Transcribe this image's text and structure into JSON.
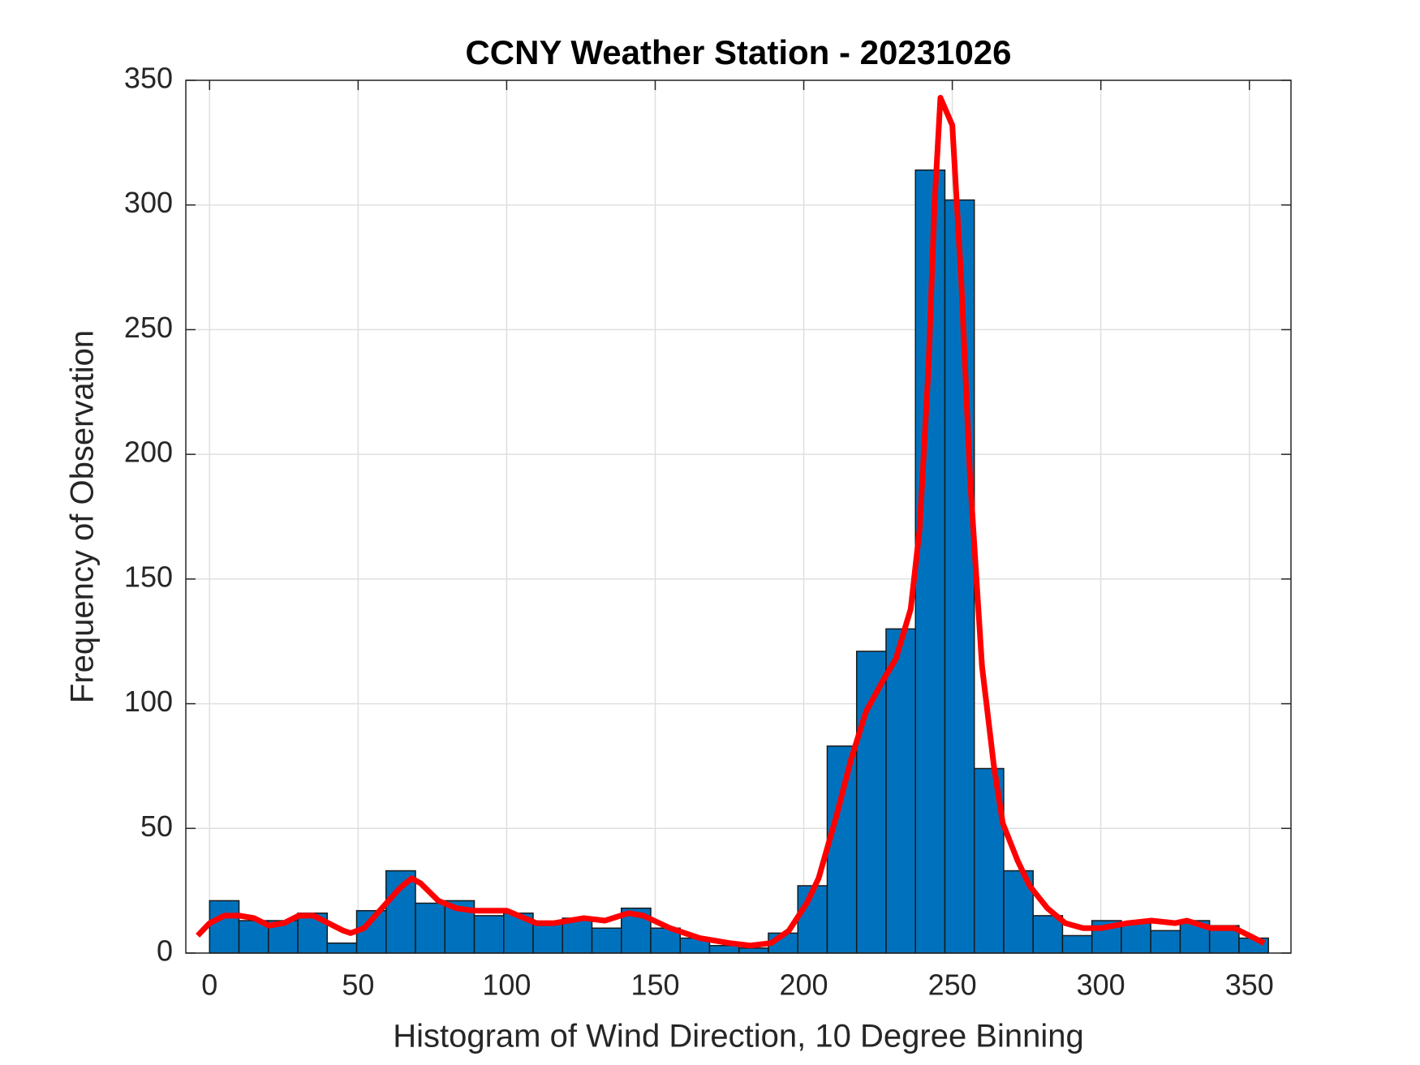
{
  "chart_data": {
    "type": "histogram",
    "title": "CCNY Weather Station - 20231026",
    "xlabel": "Histogram of Wind Direction, 10 Degree Binning",
    "ylabel": "Frequency of Observation",
    "bins": [
      0,
      9.9,
      19.8,
      29.7,
      39.6,
      49.5,
      59.4,
      69.3,
      79.2,
      89.1,
      99,
      108.9,
      118.8,
      128.7,
      138.6,
      148.5,
      158.4,
      168.3,
      178.2,
      188.1,
      198,
      207.9,
      217.8,
      227.7,
      237.6,
      247.5,
      257.4,
      267.3,
      277.2,
      287.1,
      297,
      306.9,
      316.8,
      326.7,
      336.6,
      346.5,
      356.4
    ],
    "counts": [
      21,
      13,
      13,
      16,
      4,
      17,
      33,
      20,
      21,
      15,
      16,
      12,
      14,
      10,
      18,
      10,
      6,
      3,
      2,
      8,
      27,
      83,
      121,
      130,
      314,
      302,
      74,
      33,
      15,
      7,
      13,
      12,
      9,
      13,
      11,
      6
    ],
    "color": "#0072bd",
    "line": {
      "color": "#ff0000",
      "x": [
        -4,
        0,
        5,
        10,
        15,
        20,
        25,
        30,
        35,
        40,
        45,
        47.5,
        52,
        58,
        64,
        68,
        71,
        77,
        83,
        89,
        100,
        110,
        116,
        126,
        133,
        141,
        146,
        155,
        165,
        175,
        182,
        189,
        195,
        201,
        205,
        211,
        216,
        221,
        227,
        231,
        236,
        239,
        242,
        244,
        246,
        250,
        253,
        256,
        260,
        264,
        267,
        272,
        276,
        282,
        288,
        294,
        300,
        309,
        317,
        325,
        329,
        337,
        345,
        350,
        355
      ],
      "values": [
        7,
        12,
        15,
        15,
        14,
        11,
        12,
        15,
        15,
        12,
        9,
        8,
        10,
        18,
        26,
        30,
        28,
        21,
        18,
        17,
        17,
        12,
        12,
        14,
        13,
        16,
        15,
        10,
        6,
        4,
        3,
        4,
        9,
        20,
        30,
        55,
        78,
        97,
        110,
        118,
        138,
        170,
        235,
        300,
        343,
        332,
        270,
        190,
        115,
        75,
        52,
        37,
        27,
        18,
        12,
        10,
        10,
        12,
        13,
        12,
        13,
        10,
        10,
        7,
        4
      ]
    },
    "xlim": [
      -8,
      364
    ],
    "ylim": [
      0,
      350
    ],
    "xticks": [
      0,
      50,
      100,
      150,
      200,
      250,
      300,
      350
    ],
    "yticks": [
      0,
      50,
      100,
      150,
      200,
      250,
      300,
      350
    ],
    "grid": true
  }
}
